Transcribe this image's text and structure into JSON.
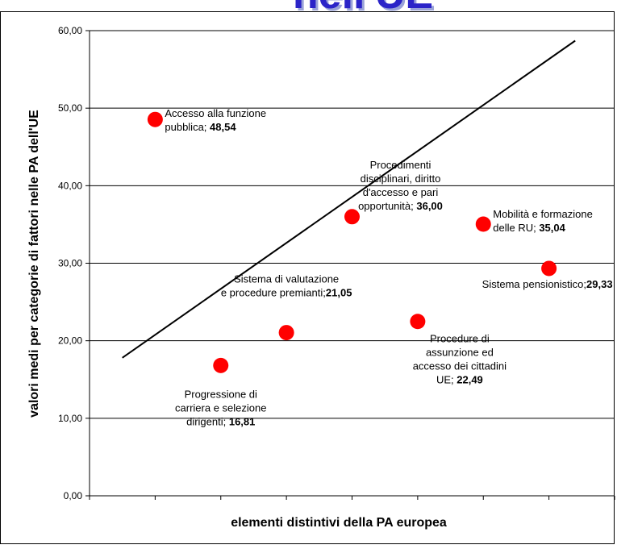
{
  "banner_text": "nell'UE",
  "chart_data": {
    "type": "scatter",
    "title": "",
    "xlabel": "elementi distintivi della PA europea",
    "ylabel": "valori medi per categorie di fattori nelle PA dell'UE",
    "ylim": [
      0,
      60
    ],
    "yticks": [
      "0,00",
      "10,00",
      "20,00",
      "30,00",
      "40,00",
      "50,00",
      "60,00"
    ],
    "xlim": [
      0,
      8
    ],
    "grid": "horizontal",
    "point_color": "#ff0000",
    "points": [
      {
        "x": 1,
        "y": 48.54,
        "label_lines": [
          "Accesso alla funzione",
          "pubblica; "
        ],
        "value_text": "48,54"
      },
      {
        "x": 2,
        "y": 16.81,
        "label_lines": [
          "Progressione di",
          "carriera e selezione",
          "dirigenti; "
        ],
        "value_text": "16,81"
      },
      {
        "x": 3,
        "y": 21.05,
        "label_lines": [
          "Sistema di valutazione",
          "e procedure premianti;",
          ""
        ],
        "value_text": "21,05"
      },
      {
        "x": 4,
        "y": 36.0,
        "label_lines": [
          "Procedimenti",
          "disciplinari, diritto",
          "d'accesso e pari",
          "opportunità; "
        ],
        "value_text": "36,00"
      },
      {
        "x": 5,
        "y": 22.49,
        "label_lines": [
          "Procedure di",
          "assunzione ed",
          "accesso dei cittadini",
          "UE; "
        ],
        "value_text": "22,49"
      },
      {
        "x": 6,
        "y": 35.04,
        "label_lines": [
          "Mobilità e formazione",
          "delle RU; "
        ],
        "value_text": "35,04"
      },
      {
        "x": 7,
        "y": 29.33,
        "label_lines": [
          "Sistema pensionistico;",
          ""
        ],
        "value_text": "29,33"
      }
    ],
    "trendline": {
      "x": [
        0.5,
        7.4
      ],
      "y": [
        17.8,
        58.7
      ]
    }
  }
}
